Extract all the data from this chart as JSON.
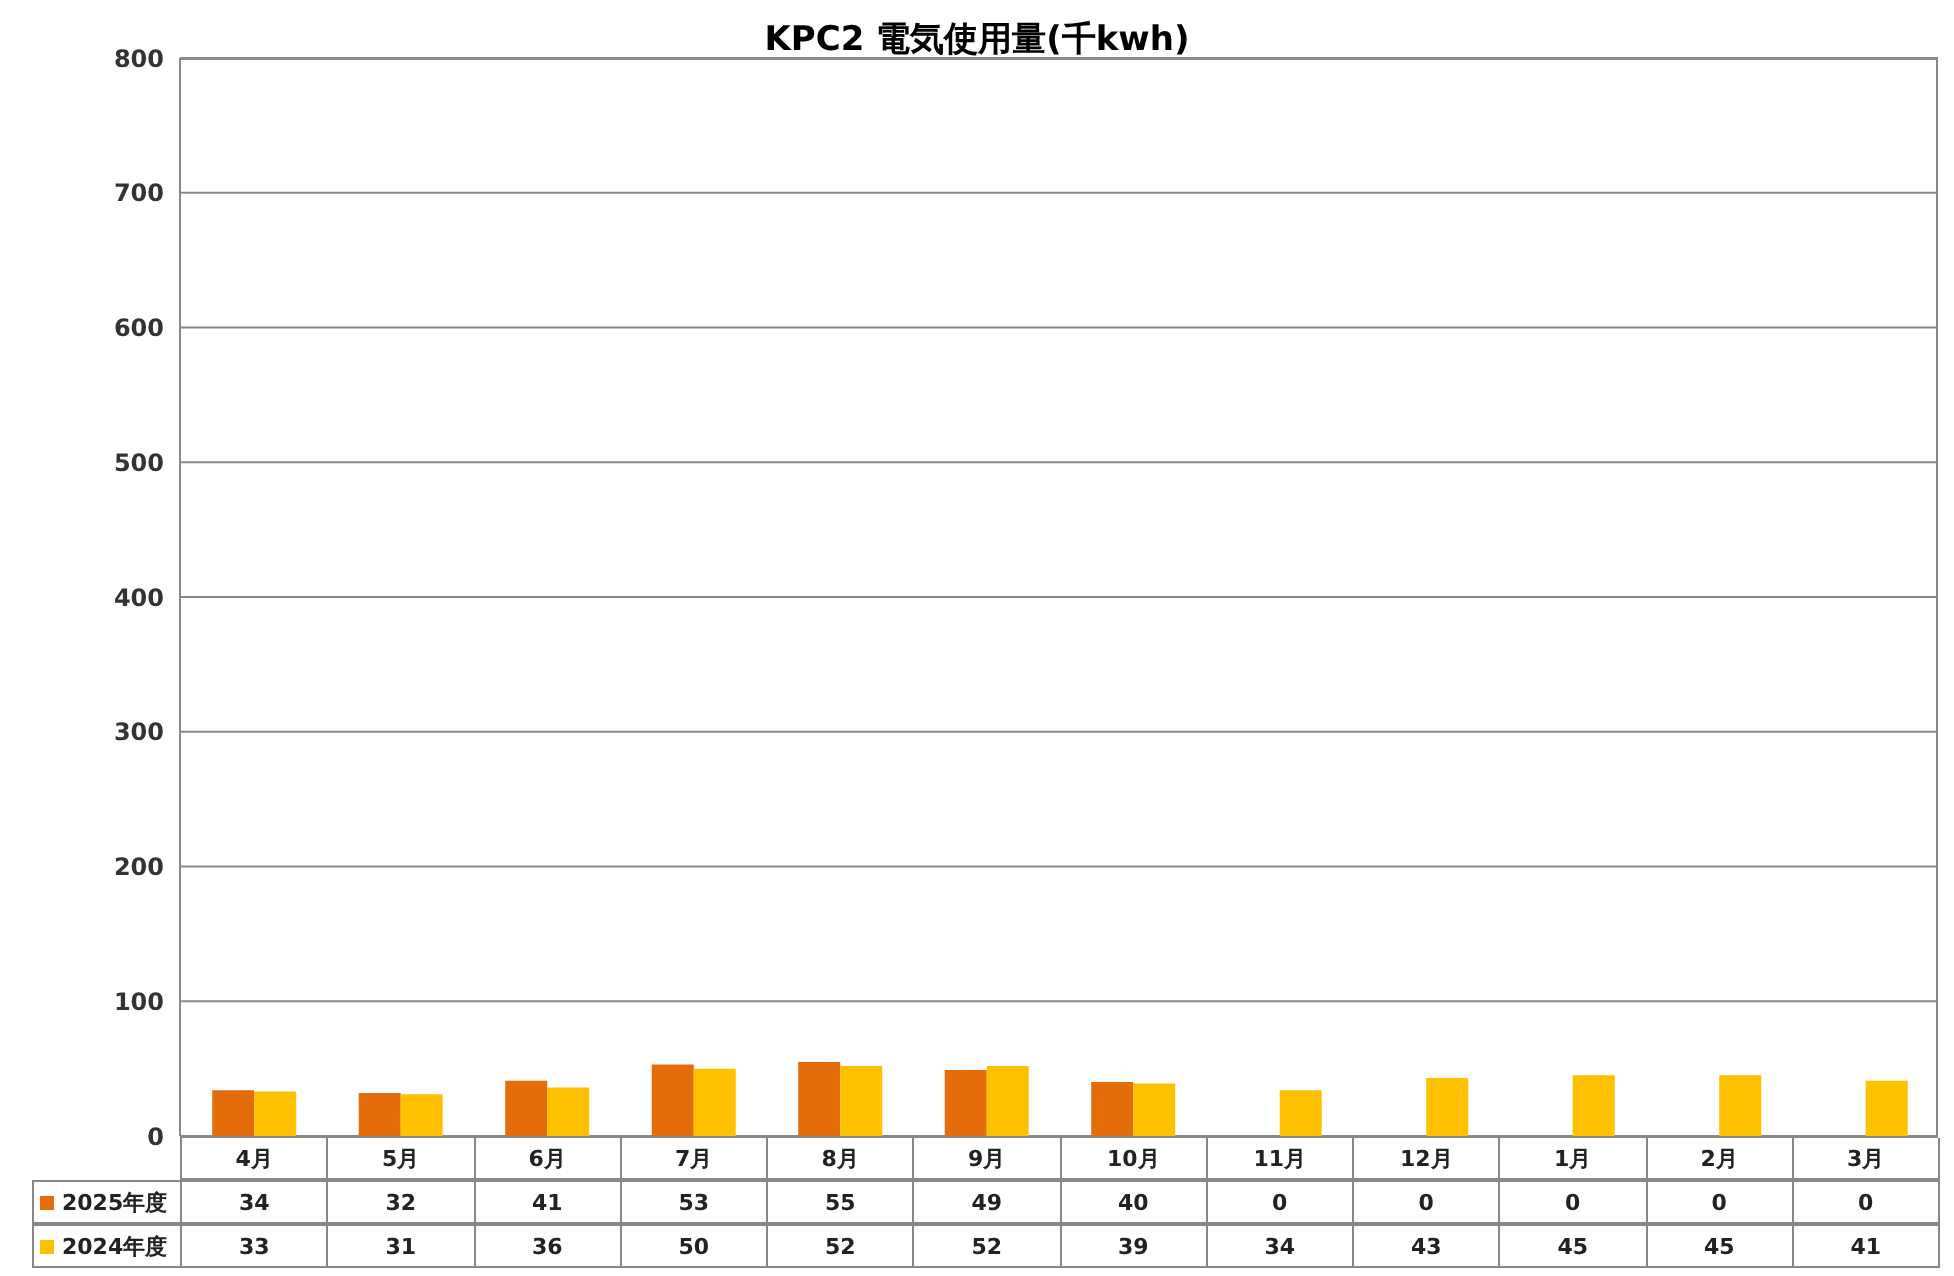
{
  "chart_data": {
    "type": "bar",
    "title": "KPC2 電気使用量(千kwh)",
    "categories": [
      "4月",
      "5月",
      "6月",
      "7月",
      "8月",
      "9月",
      "10月",
      "11月",
      "12月",
      "1月",
      "2月",
      "3月"
    ],
    "series": [
      {
        "name": "2025年度",
        "color": "#e46c0a",
        "values": [
          34,
          32,
          41,
          53,
          55,
          49,
          40,
          0,
          0,
          0,
          0,
          0
        ]
      },
      {
        "name": "2024年度",
        "color": "#ffc000",
        "values": [
          33,
          31,
          36,
          50,
          52,
          52,
          39,
          34,
          43,
          45,
          45,
          41
        ]
      }
    ],
    "ylim": [
      0,
      800
    ],
    "yticks": [
      0,
      100,
      200,
      300,
      400,
      500,
      600,
      700,
      800
    ],
    "grid": "y",
    "legend": "bottom",
    "data_labels": true
  }
}
